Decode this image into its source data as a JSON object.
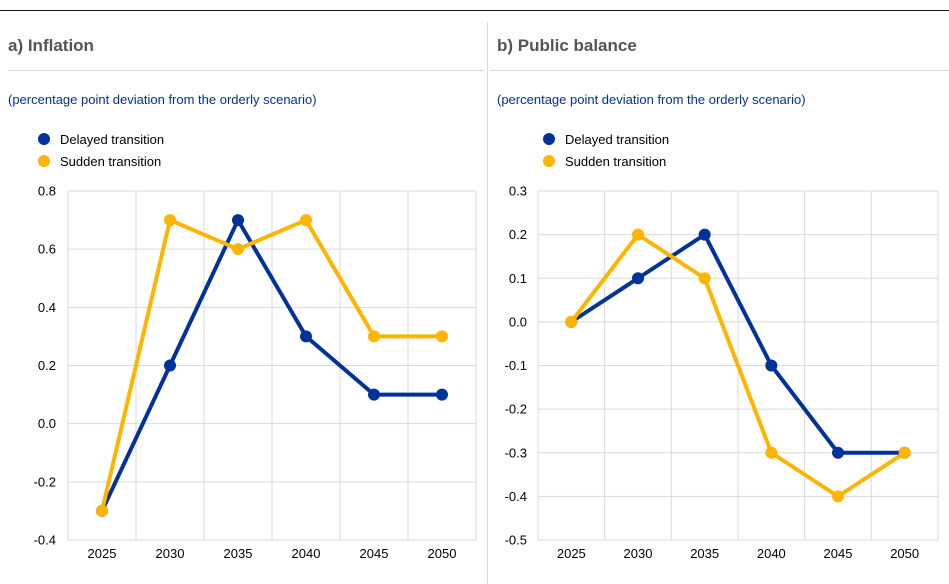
{
  "chart_data": [
    {
      "type": "line",
      "title": "a) Inflation",
      "subtitle": "(percentage point deviation from the orderly scenario)",
      "x": [
        2025,
        2030,
        2035,
        2040,
        2045,
        2050
      ],
      "ylim": [
        -0.4,
        0.8
      ],
      "yticks": [
        "0.8",
        "0.6",
        "0.4",
        "0.2",
        "0.0",
        "-0.2",
        "-0.4"
      ],
      "grid": true,
      "legend_position": "top-left",
      "series": [
        {
          "name": "Delayed transition",
          "color": "#003299",
          "values": [
            -0.3,
            0.2,
            0.7,
            0.3,
            0.1,
            0.1
          ]
        },
        {
          "name": "Sudden transition",
          "color": "#FFB400",
          "values": [
            -0.3,
            0.7,
            0.6,
            0.7,
            0.3,
            0.3
          ]
        }
      ]
    },
    {
      "type": "line",
      "title": "b) Public balance",
      "subtitle": "(percentage point deviation from the orderly scenario)",
      "x": [
        2025,
        2030,
        2035,
        2040,
        2045,
        2050
      ],
      "ylim": [
        -0.5,
        0.3
      ],
      "yticks": [
        "0.3",
        "0.2",
        "0.1",
        "0.0",
        "-0.1",
        "-0.2",
        "-0.3",
        "-0.4",
        "-0.5"
      ],
      "grid": true,
      "legend_position": "top-left",
      "series": [
        {
          "name": "Delayed transition",
          "color": "#003299",
          "values": [
            0.0,
            0.1,
            0.2,
            -0.1,
            -0.3,
            -0.3
          ]
        },
        {
          "name": "Sudden transition",
          "color": "#FFB400",
          "values": [
            0.0,
            0.2,
            0.1,
            -0.3,
            -0.4,
            -0.3
          ]
        }
      ]
    }
  ]
}
